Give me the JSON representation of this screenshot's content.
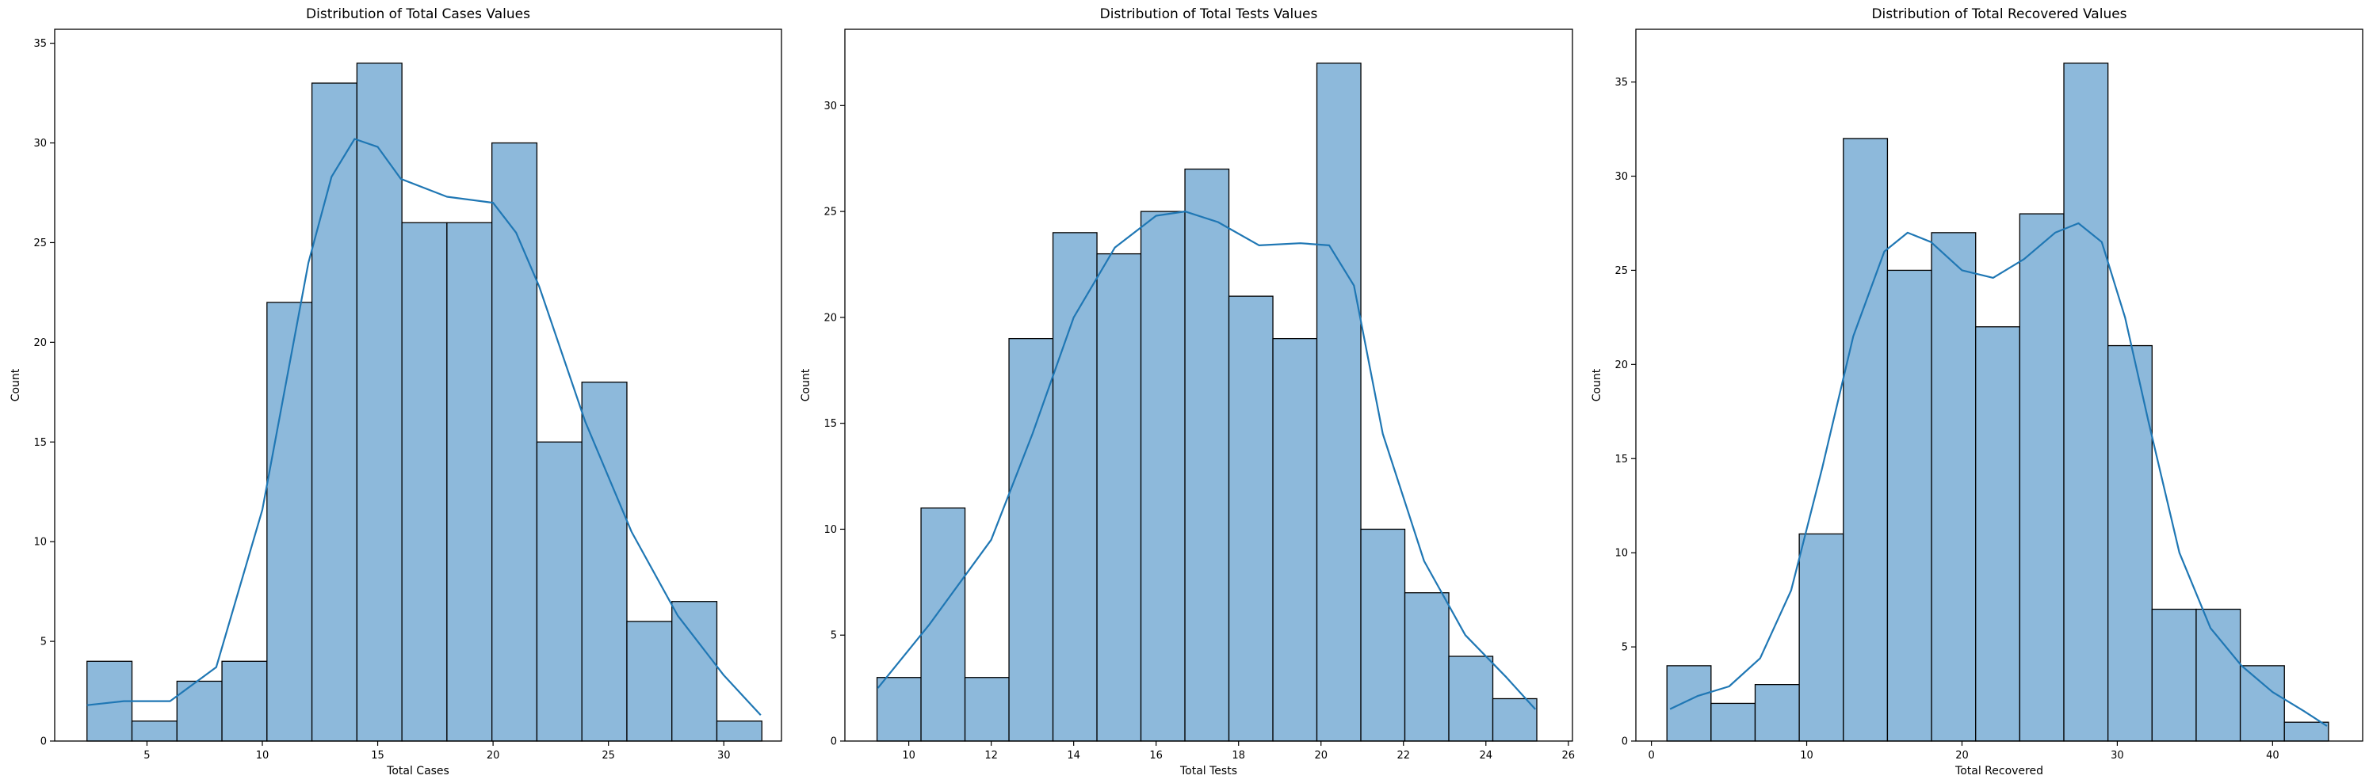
{
  "chart_data": [
    {
      "type": "bar",
      "title": "Distribution of Total Cases Values",
      "xlabel": "Total Cases",
      "ylabel": "Count",
      "xlim": [
        1.0,
        32.5
      ],
      "ylim": [
        0,
        35.7
      ],
      "xticks": [
        5,
        10,
        15,
        20,
        25,
        30
      ],
      "yticks": [
        0,
        5,
        10,
        15,
        20,
        25,
        30,
        35
      ],
      "bin_start": 2.4,
      "bin_width": 1.95,
      "values": [
        4,
        1,
        3,
        4,
        22,
        33,
        34,
        26,
        26,
        30,
        15,
        18,
        6,
        7,
        1
      ],
      "kde": [
        [
          2.4,
          1.8
        ],
        [
          4,
          2
        ],
        [
          6,
          2
        ],
        [
          8,
          3.7
        ],
        [
          10,
          11.6
        ],
        [
          12,
          24
        ],
        [
          13,
          28.3
        ],
        [
          14,
          30.2
        ],
        [
          15,
          29.8
        ],
        [
          16,
          28.2
        ],
        [
          18,
          27.3
        ],
        [
          20,
          27
        ],
        [
          21,
          25.5
        ],
        [
          22,
          22.8
        ],
        [
          24,
          16
        ],
        [
          26,
          10.5
        ],
        [
          28,
          6.3
        ],
        [
          30,
          3.3
        ],
        [
          31.6,
          1.3
        ]
      ],
      "bar_color": "#8db9db",
      "line_color": "#1f77b4"
    },
    {
      "type": "bar",
      "title": "Distribution of Total Tests Values",
      "xlabel": "Total Tests",
      "ylabel": "Count",
      "xlim": [
        8.45,
        26.1
      ],
      "ylim": [
        0,
        33.6
      ],
      "xticks": [
        10,
        12,
        14,
        16,
        18,
        20,
        22,
        24,
        26
      ],
      "yticks": [
        0,
        5,
        10,
        15,
        20,
        25,
        30
      ],
      "bin_start": 9.23,
      "bin_width": 1.067,
      "values": [
        3,
        11,
        3,
        19,
        24,
        23,
        25,
        27,
        21,
        19,
        32,
        10,
        7,
        4,
        2
      ],
      "kde": [
        [
          9.25,
          2.5
        ],
        [
          10.5,
          5.5
        ],
        [
          12,
          9.5
        ],
        [
          13,
          14.5
        ],
        [
          14,
          20
        ],
        [
          15,
          23.3
        ],
        [
          16,
          24.8
        ],
        [
          16.7,
          25
        ],
        [
          17.5,
          24.5
        ],
        [
          18.5,
          23.4
        ],
        [
          19.5,
          23.5
        ],
        [
          20.2,
          23.4
        ],
        [
          20.8,
          21.5
        ],
        [
          21.5,
          14.5
        ],
        [
          22.5,
          8.5
        ],
        [
          23.5,
          5
        ],
        [
          24.5,
          3
        ],
        [
          25.2,
          1.5
        ]
      ],
      "bar_color": "#8db9db",
      "line_color": "#1f77b4"
    },
    {
      "type": "bar",
      "title": "Distribution of Total Recovered Values",
      "xlabel": "Total Recovered",
      "ylabel": "Count",
      "xlim": [
        -1.0,
        45.8
      ],
      "ylim": [
        0,
        37.8
      ],
      "xticks": [
        0,
        10,
        20,
        30,
        40
      ],
      "yticks": [
        0,
        5,
        10,
        15,
        20,
        25,
        30,
        35
      ],
      "bin_start": 1.0,
      "bin_width": 2.84,
      "values": [
        4,
        2,
        3,
        11,
        32,
        25,
        27,
        22,
        28,
        36,
        21,
        7,
        7,
        4,
        1
      ],
      "kde": [
        [
          1.2,
          1.7
        ],
        [
          3,
          2.4
        ],
        [
          5,
          2.9
        ],
        [
          7,
          4.4
        ],
        [
          9,
          8
        ],
        [
          11,
          14.5
        ],
        [
          13,
          21.5
        ],
        [
          15,
          26
        ],
        [
          16.5,
          27
        ],
        [
          18,
          26.5
        ],
        [
          20,
          25
        ],
        [
          22,
          24.6
        ],
        [
          24,
          25.6
        ],
        [
          26,
          27
        ],
        [
          27.5,
          27.5
        ],
        [
          29,
          26.5
        ],
        [
          30.5,
          22.5
        ],
        [
          32,
          17
        ],
        [
          34,
          10
        ],
        [
          36,
          6
        ],
        [
          38,
          4
        ],
        [
          40,
          2.6
        ],
        [
          42,
          1.6
        ],
        [
          43.5,
          0.8
        ]
      ],
      "bar_color": "#8db9db",
      "line_color": "#1f77b4"
    }
  ]
}
